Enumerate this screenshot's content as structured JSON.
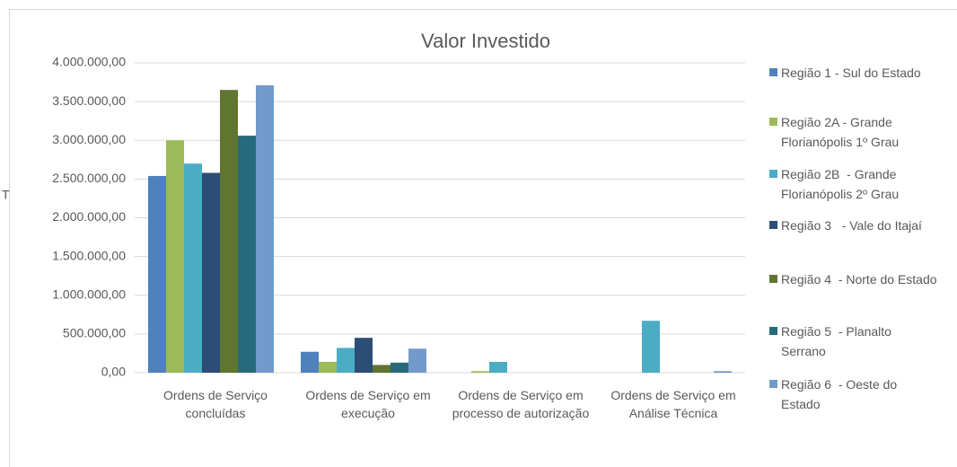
{
  "chart_data": {
    "type": "bar",
    "title": "Valor Investido",
    "stray_text": "T",
    "categories": [
      "Ordens de Serviço concluídas",
      "Ordens de Serviço em execução",
      "Ordens de Serviço em processo de autorização",
      "Ordens de Serviço  em Análise Técnica"
    ],
    "series": [
      {
        "name": "Região 1 - Sul do Estado",
        "color": "#4f81bd",
        "values": [
          2540000,
          270000,
          0,
          0
        ]
      },
      {
        "name": "Região 2A - Grande Florianópolis 1º Grau",
        "color": "#9bbb59",
        "values": [
          3000000,
          140000,
          20000,
          0
        ]
      },
      {
        "name": "Região 2B  - Grande Florianópolis 2º Grau",
        "color": "#4bacc6",
        "values": [
          2700000,
          320000,
          140000,
          670000
        ]
      },
      {
        "name": "Região 3   - Vale do Itajaí",
        "color": "#2c4d75",
        "values": [
          2580000,
          450000,
          0,
          0
        ]
      },
      {
        "name": "Região 4  - Norte do Estado",
        "color": "#5f7530",
        "values": [
          3650000,
          100000,
          0,
          0
        ]
      },
      {
        "name": "Região 5  - Planalto Serrano",
        "color": "#276a7c",
        "values": [
          3060000,
          130000,
          0,
          0
        ]
      },
      {
        "name": "Região 6  - Oeste do Estado",
        "color": "#729aca",
        "values": [
          3710000,
          310000,
          0,
          20000
        ]
      }
    ],
    "ylim": [
      0,
      4000000
    ],
    "yticks": [
      {
        "value": 0,
        "label": "0,00"
      },
      {
        "value": 500000,
        "label": "500.000,00"
      },
      {
        "value": 1000000,
        "label": "1.000.000,00"
      },
      {
        "value": 1500000,
        "label": "1.500.000,00"
      },
      {
        "value": 2000000,
        "label": "2.000.000,00"
      },
      {
        "value": 2500000,
        "label": "2.500.000,00"
      },
      {
        "value": 3000000,
        "label": "3.000.000,00"
      },
      {
        "value": 3500000,
        "label": "3.500.000,00"
      },
      {
        "value": 4000000,
        "label": "4.000.000,00"
      }
    ],
    "grid": true,
    "legend": "right"
  }
}
